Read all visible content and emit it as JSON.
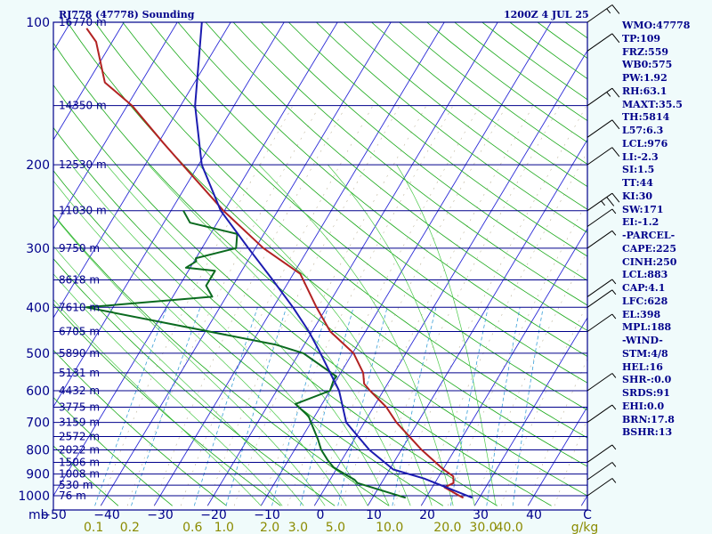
{
  "header": {
    "station": "RJ778 (47778) Sounding",
    "time": "1200Z  4 JUL 25"
  },
  "indices": [
    "WMO:47778",
    "TP:109",
    "FRZ:559",
    "WB0:575",
    "PW:1.92",
    "RH:63.1",
    "MAXT:35.5",
    "TH:5814",
    "L57:6.3",
    "LCL:976",
    "LI:-2.3",
    "SI:1.5",
    "TT:44",
    "KI:30",
    "SW:171",
    "EI:-1.2",
    "-PARCEL-",
    "CAPE:225",
    "CINH:250",
    "LCL:883",
    "CAP:4.1",
    "LFC:628",
    "EL:398",
    "MPL:188",
    "-WIND-",
    "STM:4/8",
    "HEL:16",
    "SHR-:0.0",
    "SRDS:91",
    "EHI:0.0",
    "BRN:17.8",
    "BSHR:13"
  ],
  "chart_data": {
    "type": "line",
    "subtype": "skew-T log-P sounding",
    "pressure_axis": {
      "unit_label": "mb",
      "ticks": [
        100,
        200,
        300,
        400,
        500,
        600,
        700,
        800,
        900,
        1000
      ],
      "range": [
        100,
        1050
      ],
      "scale": "log"
    },
    "temperature_axis": {
      "unit_label": "C",
      "ticks": [
        -50,
        -40,
        -30,
        -20,
        -10,
        0,
        10,
        20,
        30,
        40
      ],
      "range": [
        -50,
        50
      ]
    },
    "mixing_ratio_axis": {
      "unit_label": "g/kg",
      "ticks": [
        0.1,
        0.2,
        0.6,
        1.0,
        2.0,
        3.0,
        5.0,
        10.0,
        20.0,
        30.0,
        40.0
      ]
    },
    "height_levels": [
      {
        "p": 100,
        "label": "16770 m"
      },
      {
        "p": 150,
        "label": "14350 m"
      },
      {
        "p": 200,
        "label": "12530 m"
      },
      {
        "p": 250,
        "label": "11030 m"
      },
      {
        "p": 300,
        "label": "9750 m"
      },
      {
        "p": 350,
        "label": "8618 m"
      },
      {
        "p": 400,
        "label": "7610 m"
      },
      {
        "p": 450,
        "label": "6705 m"
      },
      {
        "p": 500,
        "label": "5890 m"
      },
      {
        "p": 550,
        "label": "5131 m"
      },
      {
        "p": 600,
        "label": "4432 m"
      },
      {
        "p": 650,
        "label": "3775 m"
      },
      {
        "p": 700,
        "label": "3159 m"
      },
      {
        "p": 750,
        "label": "2572 m"
      },
      {
        "p": 800,
        "label": "2022 m"
      },
      {
        "p": 850,
        "label": "1506 m"
      },
      {
        "p": 900,
        "label": "1008 m"
      },
      {
        "p": 950,
        "label": "530 m"
      },
      {
        "p": 1000,
        "label": "76 m"
      }
    ],
    "series": [
      {
        "color": "#b22222",
        "points": [
          [
            103,
            -96.3
          ],
          [
            110,
            -93.0
          ],
          [
            134,
            -86.8
          ],
          [
            150,
            -79.1
          ],
          [
            180,
            -69.0
          ],
          [
            200,
            -63.0
          ],
          [
            250,
            -50.2
          ],
          [
            300,
            -38.5
          ],
          [
            340,
            -28.7
          ],
          [
            400,
            -21.9
          ],
          [
            450,
            -16.6
          ],
          [
            500,
            -9.8
          ],
          [
            550,
            -5.8
          ],
          [
            580,
            -4.4
          ],
          [
            600,
            -2.5
          ],
          [
            650,
            2.4
          ],
          [
            700,
            6.0
          ],
          [
            800,
            13.8
          ],
          [
            880,
            20.1
          ],
          [
            910,
            22.7
          ],
          [
            940,
            23.5
          ],
          [
            960,
            22.3
          ],
          [
            1000,
            26.0
          ],
          [
            1010,
            27.0
          ]
        ]
      },
      {
        "color": "#0a6a1f",
        "points": [
          [
            250,
            -57.7
          ],
          [
            265,
            -55.1
          ],
          [
            280,
            -45.0
          ],
          [
            300,
            -43.6
          ],
          [
            315,
            -50.0
          ],
          [
            320,
            -49.6
          ],
          [
            330,
            -50.8
          ],
          [
            335,
            -45.0
          ],
          [
            360,
            -45.0
          ],
          [
            380,
            -42.6
          ],
          [
            400,
            -65.0
          ],
          [
            480,
            -25.2
          ],
          [
            500,
            -19.2
          ],
          [
            560,
            -10.4
          ],
          [
            570,
            -10.5
          ],
          [
            600,
            -10.0
          ],
          [
            640,
            -15.0
          ],
          [
            680,
            -11.1
          ],
          [
            700,
            -10.0
          ],
          [
            760,
            -6.8
          ],
          [
            800,
            -5.0
          ],
          [
            840,
            -2.7
          ],
          [
            870,
            -0.8
          ],
          [
            905,
            2.6
          ],
          [
            925,
            4.6
          ],
          [
            940,
            5.5
          ],
          [
            1010,
            16.2
          ]
        ]
      },
      {
        "color": "#1c1cb0",
        "points": [
          [
            100,
            -75.4
          ],
          [
            150,
            -67.3
          ],
          [
            200,
            -59.4
          ],
          [
            250,
            -50.7
          ],
          [
            300,
            -41.3
          ],
          [
            350,
            -33.2
          ],
          [
            400,
            -26.3
          ],
          [
            450,
            -20.6
          ],
          [
            500,
            -16.0
          ],
          [
            600,
            -8.3
          ],
          [
            700,
            -3.4
          ],
          [
            800,
            4.0
          ],
          [
            880,
            10.7
          ],
          [
            920,
            17.5
          ],
          [
            1010,
            28.7
          ]
        ]
      }
    ],
    "wind_barbs": [
      {
        "p": 100,
        "speed_kt": 15
      },
      {
        "p": 115,
        "speed_kt": 10
      },
      {
        "p": 150,
        "speed_kt": 15
      },
      {
        "p": 175,
        "speed_kt": 10
      },
      {
        "p": 200,
        "speed_kt": 10
      },
      {
        "p": 250,
        "speed_kt": 25
      },
      {
        "p": 270,
        "speed_kt": 5
      },
      {
        "p": 300,
        "speed_kt": 5
      },
      {
        "p": 380,
        "speed_kt": 5
      },
      {
        "p": 400,
        "speed_kt": 5
      },
      {
        "p": 450,
        "speed_kt": 5
      },
      {
        "p": 600,
        "speed_kt": 5
      },
      {
        "p": 700,
        "speed_kt": 5
      },
      {
        "p": 850,
        "speed_kt": 5
      },
      {
        "p": 925,
        "speed_kt": 5
      },
      {
        "p": 1000,
        "speed_kt": 5
      }
    ],
    "colors": {
      "isobar": "#00008b",
      "isotherm": "#2a2ad6",
      "dry_adiabat": "#18a818",
      "moist_adiabat": "#48c848",
      "mixing_ratio": "#3aa0d8",
      "saturation_ticks": "#8a7a4a",
      "axis_text": "#00008b",
      "bottom_scale_text": "#8b8b00",
      "background_plot": "#ffffff"
    }
  }
}
